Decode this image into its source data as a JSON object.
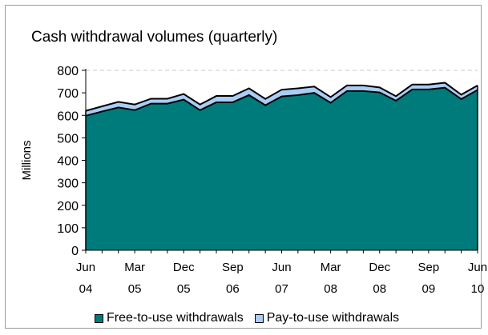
{
  "chart_data": {
    "type": "area",
    "title": "Cash withdrawal volumes (quarterly)",
    "ylabel": "Millions",
    "xlabel": "",
    "ylim": [
      0,
      800
    ],
    "yticks": [
      "0",
      "100",
      "200",
      "300",
      "400",
      "500",
      "600",
      "700",
      "800"
    ],
    "x": [
      "Jun 04",
      "Sep 04",
      "Dec 04",
      "Mar 05",
      "Jun 05",
      "Sep 05",
      "Dec 05",
      "Mar 06",
      "Jun 06",
      "Sep 06",
      "Dec 06",
      "Mar 07",
      "Jun 07",
      "Sep 07",
      "Dec 07",
      "Mar 08",
      "Jun 08",
      "Sep 08",
      "Dec 08",
      "Mar 09",
      "Jun 09",
      "Sep 09",
      "Dec 09",
      "Mar 10",
      "Jun 10"
    ],
    "xtick_labels": [
      {
        "month": "Jun",
        "year": "04"
      },
      {
        "month": "Mar",
        "year": "05"
      },
      {
        "month": "Dec",
        "year": "05"
      },
      {
        "month": "Sep",
        "year": "06"
      },
      {
        "month": "Jun",
        "year": "07"
      },
      {
        "month": "Mar",
        "year": "08"
      },
      {
        "month": "Dec",
        "year": "08"
      },
      {
        "month": "Sep",
        "year": "09"
      },
      {
        "month": "Jun",
        "year": "10"
      }
    ],
    "stacked": true,
    "series": [
      {
        "name": "Free-to-use withdrawals",
        "color": "#007b7b",
        "values": [
          598,
          617,
          635,
          623,
          652,
          652,
          670,
          623,
          658,
          658,
          690,
          645,
          684,
          690,
          700,
          656,
          708,
          708,
          702,
          665,
          715,
          715,
          723,
          672,
          713
        ]
      },
      {
        "name": "Pay-to-use withdrawals",
        "color": "#a9cdf5",
        "values": [
          22,
          23,
          25,
          25,
          22,
          22,
          25,
          25,
          28,
          28,
          30,
          28,
          30,
          30,
          28,
          25,
          25,
          25,
          22,
          20,
          22,
          22,
          22,
          20,
          20
        ]
      }
    ],
    "grid": "horizontal dashed at top",
    "legend_position": "bottom"
  }
}
